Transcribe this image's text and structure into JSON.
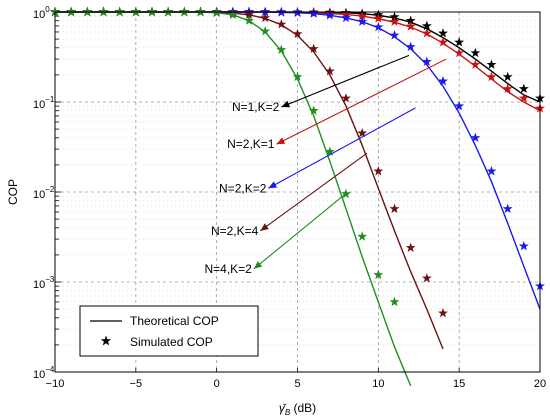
{
  "chart_data": {
    "type": "line",
    "xlabel": "γ̄_B (dB)",
    "xlabel_main": "γ̄",
    "xlabel_sub": "B",
    "xlabel_unit": " (dB)",
    "ylabel": "COP",
    "xlim": [
      -10,
      20
    ],
    "ylim": [
      0.0001,
      1
    ],
    "yscale": "log",
    "grid": true,
    "legend_position": "bottom-left",
    "x_ticks": [
      "−10",
      "−5",
      "0",
      "5",
      "10",
      "15",
      "20"
    ],
    "y_ticks": [
      {
        "base": "10",
        "exp": "0"
      },
      {
        "base": "10",
        "exp": "−1"
      },
      {
        "base": "10",
        "exp": "−2"
      },
      {
        "base": "10",
        "exp": "−3"
      },
      {
        "base": "10",
        "exp": "−4"
      }
    ],
    "legend": {
      "theory": "Theoretical COP",
      "sim": "Simulated COP"
    },
    "series": [
      {
        "name": "N=1,K=2",
        "color": "#000000",
        "x": [
          -10,
          -9,
          -8,
          -7,
          -6,
          -5,
          -4,
          -3,
          -2,
          -1,
          0,
          1,
          2,
          3,
          4,
          5,
          6,
          7,
          8,
          9,
          10,
          11,
          12,
          13,
          14,
          15,
          16,
          17,
          18,
          19,
          20
        ],
        "y": [
          1,
          1,
          1,
          1,
          1,
          1,
          1,
          1,
          1,
          1,
          1,
          1,
          1,
          1,
          1,
          0.998,
          0.995,
          0.99,
          0.98,
          0.96,
          0.92,
          0.86,
          0.77,
          0.65,
          0.52,
          0.4,
          0.3,
          0.22,
          0.16,
          0.12,
          0.1
        ]
      },
      {
        "name": "N=2,K=1",
        "color": "#cc1111",
        "x": [
          -10,
          -9,
          -8,
          -7,
          -6,
          -5,
          -4,
          -3,
          -2,
          -1,
          0,
          1,
          2,
          3,
          4,
          5,
          6,
          7,
          8,
          9,
          10,
          11,
          12,
          13,
          14,
          15,
          16,
          17,
          18,
          19,
          20
        ],
        "y": [
          1,
          1,
          1,
          1,
          1,
          1,
          1,
          1,
          1,
          1,
          1,
          1,
          1,
          1,
          0.998,
          0.99,
          0.98,
          0.96,
          0.94,
          0.9,
          0.84,
          0.77,
          0.68,
          0.57,
          0.45,
          0.34,
          0.25,
          0.18,
          0.13,
          0.1,
          0.08
        ]
      },
      {
        "name": "N=2,K=2",
        "color": "#1a1aee",
        "x": [
          -10,
          -9,
          -8,
          -7,
          -6,
          -5,
          -4,
          -3,
          -2,
          -1,
          0,
          1,
          2,
          3,
          4,
          5,
          6,
          7,
          8,
          9,
          10,
          11,
          12,
          13,
          14,
          15,
          16,
          17,
          18,
          19,
          20
        ],
        "y": [
          1,
          1,
          1,
          1,
          1,
          1,
          1,
          1,
          1,
          1,
          1,
          1,
          1,
          0.998,
          0.99,
          0.98,
          0.96,
          0.92,
          0.86,
          0.78,
          0.67,
          0.53,
          0.39,
          0.26,
          0.15,
          0.075,
          0.033,
          0.013,
          0.0045,
          0.0015,
          0.0005
        ]
      },
      {
        "name": "N=2,K=4",
        "color": "#6b1212",
        "x": [
          -10,
          -9,
          -8,
          -7,
          -6,
          -5,
          -4,
          -3,
          -2,
          -1,
          0,
          1,
          2,
          3,
          4,
          5,
          6,
          7,
          8,
          9,
          10,
          11,
          12,
          13,
          14
        ],
        "y": [
          1,
          1,
          1,
          1,
          1,
          1,
          1,
          1,
          1,
          0.998,
          0.99,
          0.97,
          0.93,
          0.85,
          0.72,
          0.55,
          0.36,
          0.2,
          0.09,
          0.033,
          0.011,
          0.0037,
          0.0013,
          0.0005,
          0.00018
        ]
      },
      {
        "name": "N=4,K=2",
        "color": "#1f8f1f",
        "x": [
          -10,
          -9,
          -8,
          -7,
          -6,
          -5,
          -4,
          -3,
          -2,
          -1,
          0,
          1,
          2,
          3,
          4,
          5,
          6,
          7,
          8,
          9,
          10,
          11,
          12
        ],
        "y": [
          1,
          1,
          1,
          1,
          1,
          1,
          1,
          1,
          1,
          0.998,
          0.98,
          0.93,
          0.8,
          0.6,
          0.37,
          0.18,
          0.07,
          0.022,
          0.0065,
          0.0019,
          0.0006,
          0.00019,
          7e-05
        ]
      }
    ],
    "simulated_points": [
      {
        "series": "N=1,K=2",
        "x": [
          -10,
          -9,
          -8,
          -7,
          -6,
          -5,
          -4,
          -3,
          -2,
          -1,
          0,
          1,
          2,
          3,
          4,
          5,
          6,
          7,
          8,
          9,
          10,
          11,
          12,
          13,
          14,
          15,
          16,
          17,
          18,
          19,
          20
        ],
        "y": [
          1,
          1,
          1,
          1,
          1,
          1,
          1,
          1,
          1,
          1,
          1,
          1,
          1,
          1,
          1,
          0.998,
          0.995,
          0.99,
          0.98,
          0.96,
          0.93,
          0.88,
          0.8,
          0.7,
          0.58,
          0.46,
          0.35,
          0.26,
          0.19,
          0.14,
          0.11
        ]
      },
      {
        "series": "N=2,K=1",
        "x": [
          -10,
          -9,
          -8,
          -7,
          -6,
          -5,
          -4,
          -3,
          -2,
          -1,
          0,
          1,
          2,
          3,
          4,
          5,
          6,
          7,
          8,
          9,
          10,
          11,
          12,
          13,
          14,
          15,
          16,
          17,
          18,
          19,
          20
        ],
        "y": [
          1,
          1,
          1,
          1,
          1,
          1,
          1,
          1,
          1,
          1,
          1,
          1,
          1,
          1,
          0.998,
          0.99,
          0.98,
          0.96,
          0.94,
          0.9,
          0.85,
          0.78,
          0.69,
          0.58,
          0.46,
          0.35,
          0.26,
          0.19,
          0.14,
          0.11,
          0.085
        ]
      },
      {
        "series": "N=2,K=2",
        "x": [
          -10,
          -9,
          -8,
          -7,
          -6,
          -5,
          -4,
          -3,
          -2,
          -1,
          0,
          1,
          2,
          3,
          4,
          5,
          6,
          7,
          8,
          9,
          10,
          11,
          12,
          13,
          14,
          15,
          16,
          17,
          18,
          19,
          20
        ],
        "y": [
          1,
          1,
          1,
          1,
          1,
          1,
          1,
          1,
          1,
          1,
          1,
          1,
          1,
          0.998,
          0.99,
          0.98,
          0.96,
          0.92,
          0.86,
          0.78,
          0.68,
          0.55,
          0.41,
          0.28,
          0.17,
          0.09,
          0.04,
          0.017,
          0.0065,
          0.0025,
          0.0009
        ]
      },
      {
        "series": "N=2,K=4",
        "x": [
          -10,
          -9,
          -8,
          -7,
          -6,
          -5,
          -4,
          -3,
          -2,
          -1,
          0,
          1,
          2,
          3,
          4,
          5,
          6,
          7,
          8,
          9,
          10,
          11,
          12,
          13,
          14
        ],
        "y": [
          1,
          1,
          1,
          1,
          1,
          1,
          1,
          1,
          1,
          0.998,
          0.99,
          0.97,
          0.93,
          0.86,
          0.73,
          0.57,
          0.39,
          0.22,
          0.11,
          0.045,
          0.017,
          0.0065,
          0.0024,
          0.0011,
          0.00045
        ]
      },
      {
        "series": "N=4,K=2",
        "x": [
          -10,
          -9,
          -8,
          -7,
          -6,
          -5,
          -4,
          -3,
          -2,
          -1,
          0,
          1,
          2,
          3,
          4,
          5,
          6,
          7,
          8,
          9,
          10,
          11
        ],
        "y": [
          1,
          1,
          1,
          1,
          1,
          1,
          1,
          1,
          1,
          0.998,
          0.98,
          0.93,
          0.8,
          0.61,
          0.38,
          0.19,
          0.08,
          0.028,
          0.0095,
          0.0032,
          0.0012,
          0.0006
        ]
      }
    ],
    "annotations": [
      {
        "text": "N=1,K=2",
        "series": "N=1,K=2",
        "color": "#000000",
        "arrow_from": [
          11.9,
          0.33
        ],
        "arrow_to": [
          4,
          0.088
        ]
      },
      {
        "text": "N=2,K=1",
        "series": "N=2,K=1",
        "color": "#cc1111",
        "arrow_from": [
          14.2,
          0.3
        ],
        "arrow_to": [
          3.7,
          0.034
        ]
      },
      {
        "text": "N=2,K=2",
        "series": "N=2,K=2",
        "color": "#1a1aee",
        "arrow_from": [
          12.3,
          0.086
        ],
        "arrow_to": [
          3.2,
          0.011
        ]
      },
      {
        "text": "N=2,K=4",
        "series": "N=2,K=4",
        "color": "#6b1212",
        "arrow_from": [
          9.3,
          0.027
        ],
        "arrow_to": [
          2.7,
          0.0037
        ]
      },
      {
        "text": "N=4,K=2",
        "series": "N=4,K=2",
        "color": "#1f8f1f",
        "arrow_from": [
          7.9,
          0.0093
        ],
        "arrow_to": [
          2.3,
          0.0014
        ]
      }
    ]
  }
}
